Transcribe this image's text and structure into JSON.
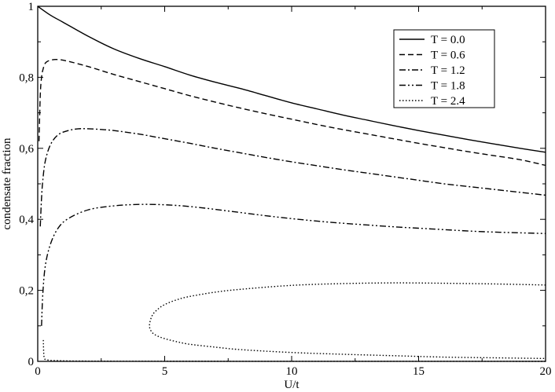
{
  "chart_data": {
    "type": "line",
    "title": "",
    "xlabel": "U/t",
    "ylabel": "condensate fraction",
    "xlim": [
      0,
      20
    ],
    "ylim": [
      0,
      1
    ],
    "xticks": [
      0,
      5,
      10,
      15,
      20
    ],
    "xtick_labels": [
      "0",
      "5",
      "10",
      "15",
      "20"
    ],
    "yticks": [
      0,
      0.2,
      0.4,
      0.6,
      0.8,
      1.0
    ],
    "ytick_labels": [
      "0",
      "0,2",
      "0,4",
      "0,6",
      "0,8",
      "1"
    ],
    "grid": false,
    "legend": "top-right",
    "series": [
      {
        "name": "T = 0.0",
        "dash": "solid",
        "x": [
          0,
          0.5,
          1,
          2,
          3,
          4,
          5,
          6,
          7,
          8,
          9,
          10,
          11,
          12,
          13,
          14,
          15,
          16,
          17,
          18,
          19,
          20
        ],
        "y": [
          1.0,
          0.975,
          0.955,
          0.915,
          0.88,
          0.853,
          0.83,
          0.806,
          0.786,
          0.768,
          0.748,
          0.728,
          0.711,
          0.694,
          0.679,
          0.664,
          0.65,
          0.637,
          0.624,
          0.612,
          0.6,
          0.589
        ]
      },
      {
        "name": "T = 0.6",
        "dash": "dashed",
        "x": [
          0.05,
          0.1,
          0.15,
          0.2,
          0.3,
          0.5,
          0.8,
          1.2,
          2,
          3,
          4,
          5,
          6,
          7,
          8,
          9,
          10,
          11,
          12,
          13,
          14,
          15,
          16,
          17,
          18,
          19,
          20
        ],
        "y": [
          0.62,
          0.75,
          0.8,
          0.82,
          0.84,
          0.848,
          0.85,
          0.845,
          0.83,
          0.808,
          0.788,
          0.768,
          0.748,
          0.73,
          0.713,
          0.697,
          0.682,
          0.667,
          0.653,
          0.64,
          0.627,
          0.614,
          0.602,
          0.59,
          0.579,
          0.568,
          0.552
        ]
      },
      {
        "name": "T = 1.2",
        "dash": "dashdot",
        "x": [
          0.1,
          0.15,
          0.2,
          0.3,
          0.5,
          0.8,
          1.2,
          1.6,
          2,
          2.5,
          3,
          4,
          5,
          6,
          7,
          8,
          9,
          10,
          11,
          12,
          13,
          14,
          15,
          16,
          17,
          18,
          19,
          20
        ],
        "y": [
          0.38,
          0.46,
          0.51,
          0.565,
          0.61,
          0.638,
          0.65,
          0.655,
          0.655,
          0.653,
          0.65,
          0.64,
          0.627,
          0.614,
          0.6,
          0.587,
          0.574,
          0.562,
          0.551,
          0.54,
          0.53,
          0.52,
          0.51,
          0.5,
          0.492,
          0.484,
          0.476,
          0.468
        ]
      },
      {
        "name": "T = 1.8",
        "dash": "dashdotdot",
        "x": [
          0.15,
          0.2,
          0.3,
          0.5,
          0.8,
          1.2,
          2,
          3,
          4,
          5,
          6,
          7,
          8,
          9,
          10,
          11,
          12,
          13,
          14,
          15,
          16,
          17,
          18,
          19,
          20
        ],
        "y": [
          0.1,
          0.19,
          0.27,
          0.33,
          0.375,
          0.402,
          0.427,
          0.438,
          0.442,
          0.441,
          0.436,
          0.428,
          0.419,
          0.41,
          0.402,
          0.395,
          0.389,
          0.384,
          0.379,
          0.375,
          0.371,
          0.367,
          0.364,
          0.362,
          0.36
        ]
      },
      {
        "name": "T = 2.4",
        "dash": "dotted",
        "x": [
          20,
          18,
          16,
          14,
          12,
          10,
          8,
          7,
          6,
          5.5,
          5,
          4.7,
          4.5,
          4.4,
          4.5,
          4.7,
          5,
          5.5,
          6,
          7,
          8,
          10,
          12,
          14,
          16,
          18,
          20
        ],
        "y": [
          0.215,
          0.218,
          0.22,
          0.221,
          0.219,
          0.214,
          0.203,
          0.195,
          0.183,
          0.174,
          0.16,
          0.145,
          0.128,
          0.1,
          0.082,
          0.072,
          0.064,
          0.055,
          0.048,
          0.04,
          0.033,
          0.025,
          0.02,
          0.016,
          0.012,
          0.01,
          0.008
        ]
      },
      {
        "name": "",
        "dash": "dotted",
        "x": [
          0.22,
          0.25,
          0.35,
          0.5,
          0.8,
          1.5,
          3,
          5,
          10,
          15,
          20
        ],
        "y": [
          0.06,
          0.012,
          0.005,
          0.003,
          0.002,
          0.001,
          0.0005,
          0.0003,
          0.0002,
          0.0001,
          0.0
        ]
      }
    ]
  }
}
